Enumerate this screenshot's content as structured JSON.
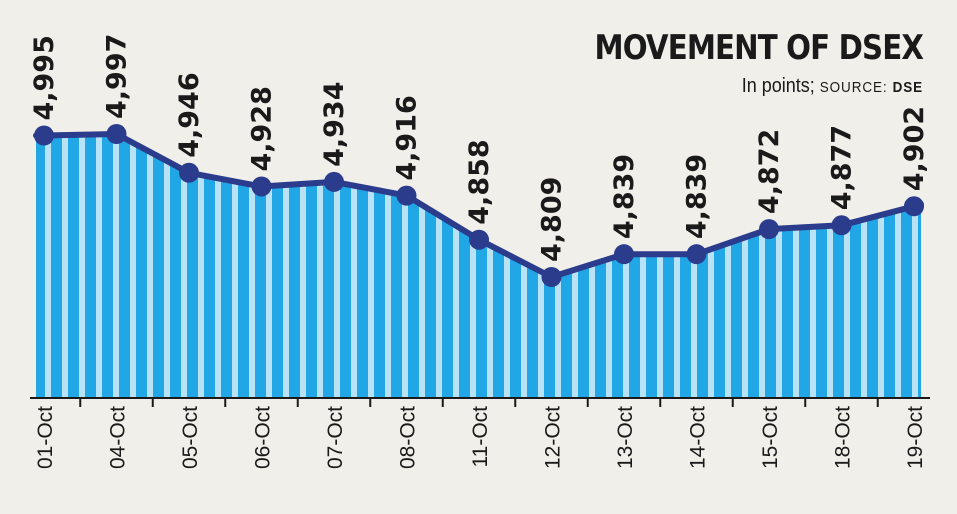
{
  "header": {
    "title": "MOVEMENT OF DSEX",
    "subtitle_units": "In points;",
    "subtitle_source_label": "SOURCE:",
    "subtitle_source_name": "DSE"
  },
  "colors": {
    "background": "#f1efe9",
    "area_fill": "#21a7e5",
    "area_stripes": "#b9e2f5",
    "line": "#2b3c8c",
    "marker": "#2b3c8c",
    "text": "#1a1a1a"
  },
  "chart_data": {
    "type": "area",
    "title": "MOVEMENT OF DSEX",
    "subtitle": "In points; SOURCE: DSE",
    "xlabel": "",
    "ylabel": "",
    "grid": false,
    "legend": "none",
    "categories": [
      "01-Oct",
      "04-Oct",
      "05-Oct",
      "06-Oct",
      "07-Oct",
      "08-Oct",
      "11-Oct",
      "12-Oct",
      "13-Oct",
      "14-Oct",
      "15-Oct",
      "18-Oct",
      "19-Oct"
    ],
    "values": [
      4995,
      4997,
      4946,
      4928,
      4934,
      4916,
      4858,
      4809,
      4839,
      4839,
      4872,
      4877,
      4902
    ],
    "value_labels": [
      "4,995",
      "4,997",
      "4,946",
      "4,928",
      "4,934",
      "4,916",
      "4,858",
      "4,809",
      "4,839",
      "4,839",
      "4,872",
      "4,877",
      "4,902"
    ]
  }
}
